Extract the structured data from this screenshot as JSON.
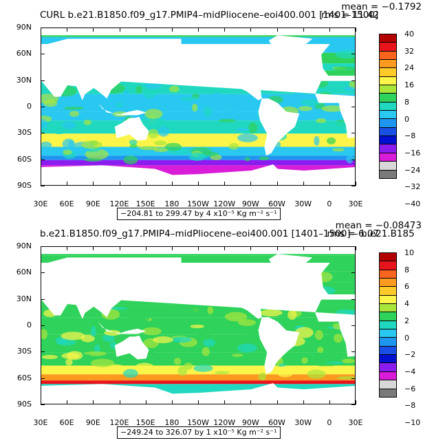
{
  "chart_data": [
    {
      "type": "heatmap",
      "title": "CURL  b.e21.B1850.f09_g17.PMIP4–midPliocene–eoi400.001  [1401–1500]",
      "mean": "mean = −0.1792",
      "rms": "rms = 11.42",
      "range": "−204.81 to 299.47 by 4 x10⁻⁵ Kg m⁻² s⁻¹",
      "y_ticks": [
        "90N",
        "60N",
        "30N",
        "0",
        "30S",
        "60S",
        "90S"
      ],
      "x_ticks": [
        "30E",
        "60E",
        "90E",
        "120E",
        "150E",
        "180",
        "150W",
        "120W",
        "90W",
        "60W",
        "30W",
        "0",
        "30E"
      ],
      "legend_levels": [
        "40",
        "32",
        "24",
        "16",
        "8",
        "0",
        "−8",
        "−16",
        "−24",
        "−32",
        "−40"
      ],
      "legend_colors": [
        "#b30000",
        "#e8141b",
        "#f8641e",
        "#fb9a1e",
        "#fdca2a",
        "#fbf54a",
        "#a8e63c",
        "#2fd25a",
        "#20d8c0",
        "#28c8f0",
        "#1e96f0",
        "#1850e6",
        "#0010d0",
        "#8a1cf0",
        "#d81cd8",
        "#d8d8d8",
        "#7a7a7a"
      ]
    },
    {
      "type": "heatmap",
      "title": "b.e21.B1850.f09_g17.PMIP4–midPliocene–eoi400.001  [1401–1500]  –  b.e21.B185",
      "mean": "mean = −0.08473",
      "rms": "rms = 6.07",
      "range": "−249.24 to 326.07 by 1 x10⁻⁵ Kg m⁻² s⁻¹",
      "y_ticks": [
        "90N",
        "60N",
        "30N",
        "0",
        "30S",
        "60S",
        "90S"
      ],
      "x_ticks": [
        "30E",
        "60E",
        "90E",
        "120E",
        "150E",
        "180",
        "150W",
        "120W",
        "90W",
        "60W",
        "30W",
        "0",
        "30E"
      ],
      "legend_levels": [
        "10",
        "8",
        "6",
        "4",
        "2",
        "0",
        "−2",
        "−4",
        "−6",
        "−8",
        "−10"
      ],
      "legend_colors": [
        "#b30000",
        "#e8141b",
        "#f8641e",
        "#fb9a1e",
        "#fdca2a",
        "#fbf54a",
        "#a8e63c",
        "#2fd25a",
        "#20d8c0",
        "#28c8f0",
        "#1e96f0",
        "#1850e6",
        "#0010d0",
        "#8a1cf0",
        "#d81cd8",
        "#d8d8d8",
        "#7a7a7a"
      ]
    }
  ]
}
